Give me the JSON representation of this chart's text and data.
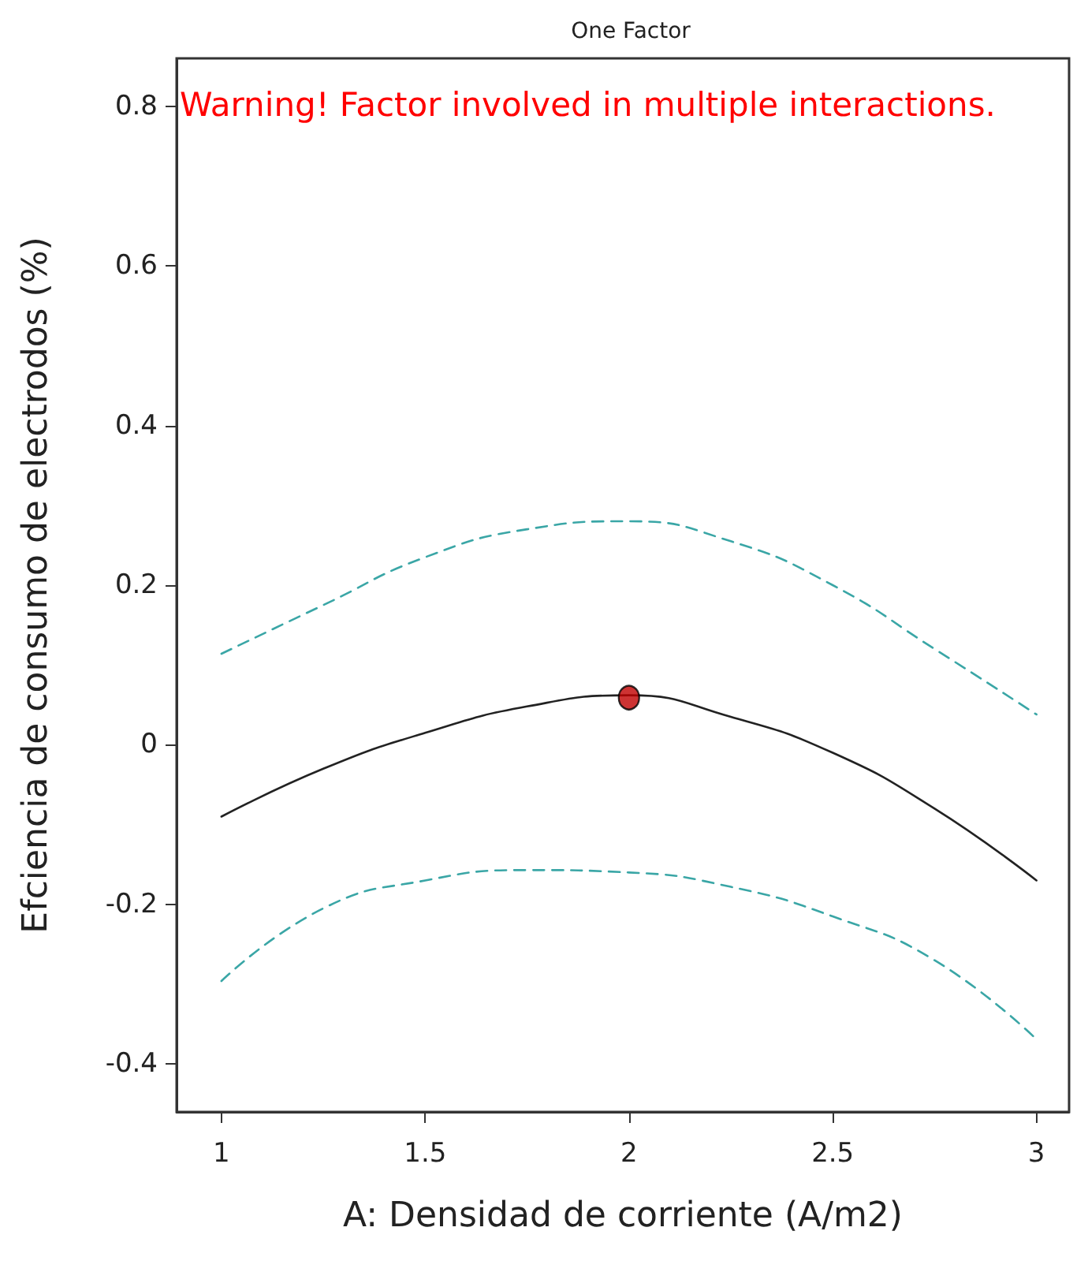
{
  "chart_data": {
    "type": "line",
    "title": "One Factor",
    "xlabel": "A: Densidad de corriente (A/m2)",
    "ylabel": "Efciencia de consumo de electrodos (%)",
    "annotations": [
      "Warning! Factor involved in multiple interactions."
    ],
    "series": [
      {
        "color": "#3aa6a6",
        "line_style": "dashed",
        "x": [
          1,
          1.25,
          1.5,
          1.75,
          2,
          2.25,
          2.5,
          2.75,
          3
        ],
        "values": [
          0.114,
          0.175,
          0.235,
          0.27,
          0.28,
          0.255,
          0.2,
          0.12,
          0.038
        ]
      },
      {
        "color": "#222222",
        "line_style": "solid",
        "x": [
          1,
          1.25,
          1.5,
          1.75,
          2,
          2.25,
          2.5,
          2.75,
          3
        ],
        "values": [
          -0.09,
          -0.03,
          0.015,
          0.048,
          0.062,
          0.035,
          -0.01,
          -0.08,
          -0.17
        ]
      },
      {
        "color": "#3aa6a6",
        "line_style": "dashed",
        "x": [
          1,
          1.25,
          1.5,
          1.75,
          2,
          2.25,
          2.5,
          2.75,
          3
        ],
        "values": [
          -0.296,
          -0.205,
          -0.17,
          -0.157,
          -0.16,
          -0.178,
          -0.215,
          -0.27,
          -0.369
        ]
      },
      {
        "type": "scatter",
        "color": "#c00000",
        "marker": "circle",
        "x": [
          2
        ],
        "values": [
          0.059
        ]
      }
    ],
    "xlim": [
      0.89,
      3.08
    ],
    "xticks": [
      1,
      1.5,
      2,
      2.5,
      3
    ],
    "ylim": [
      -0.46,
      0.86
    ],
    "yticks": [
      -0.4,
      -0.2,
      0,
      0.2,
      0.4,
      0.6,
      0.8
    ],
    "grid": false,
    "marker": "none"
  }
}
